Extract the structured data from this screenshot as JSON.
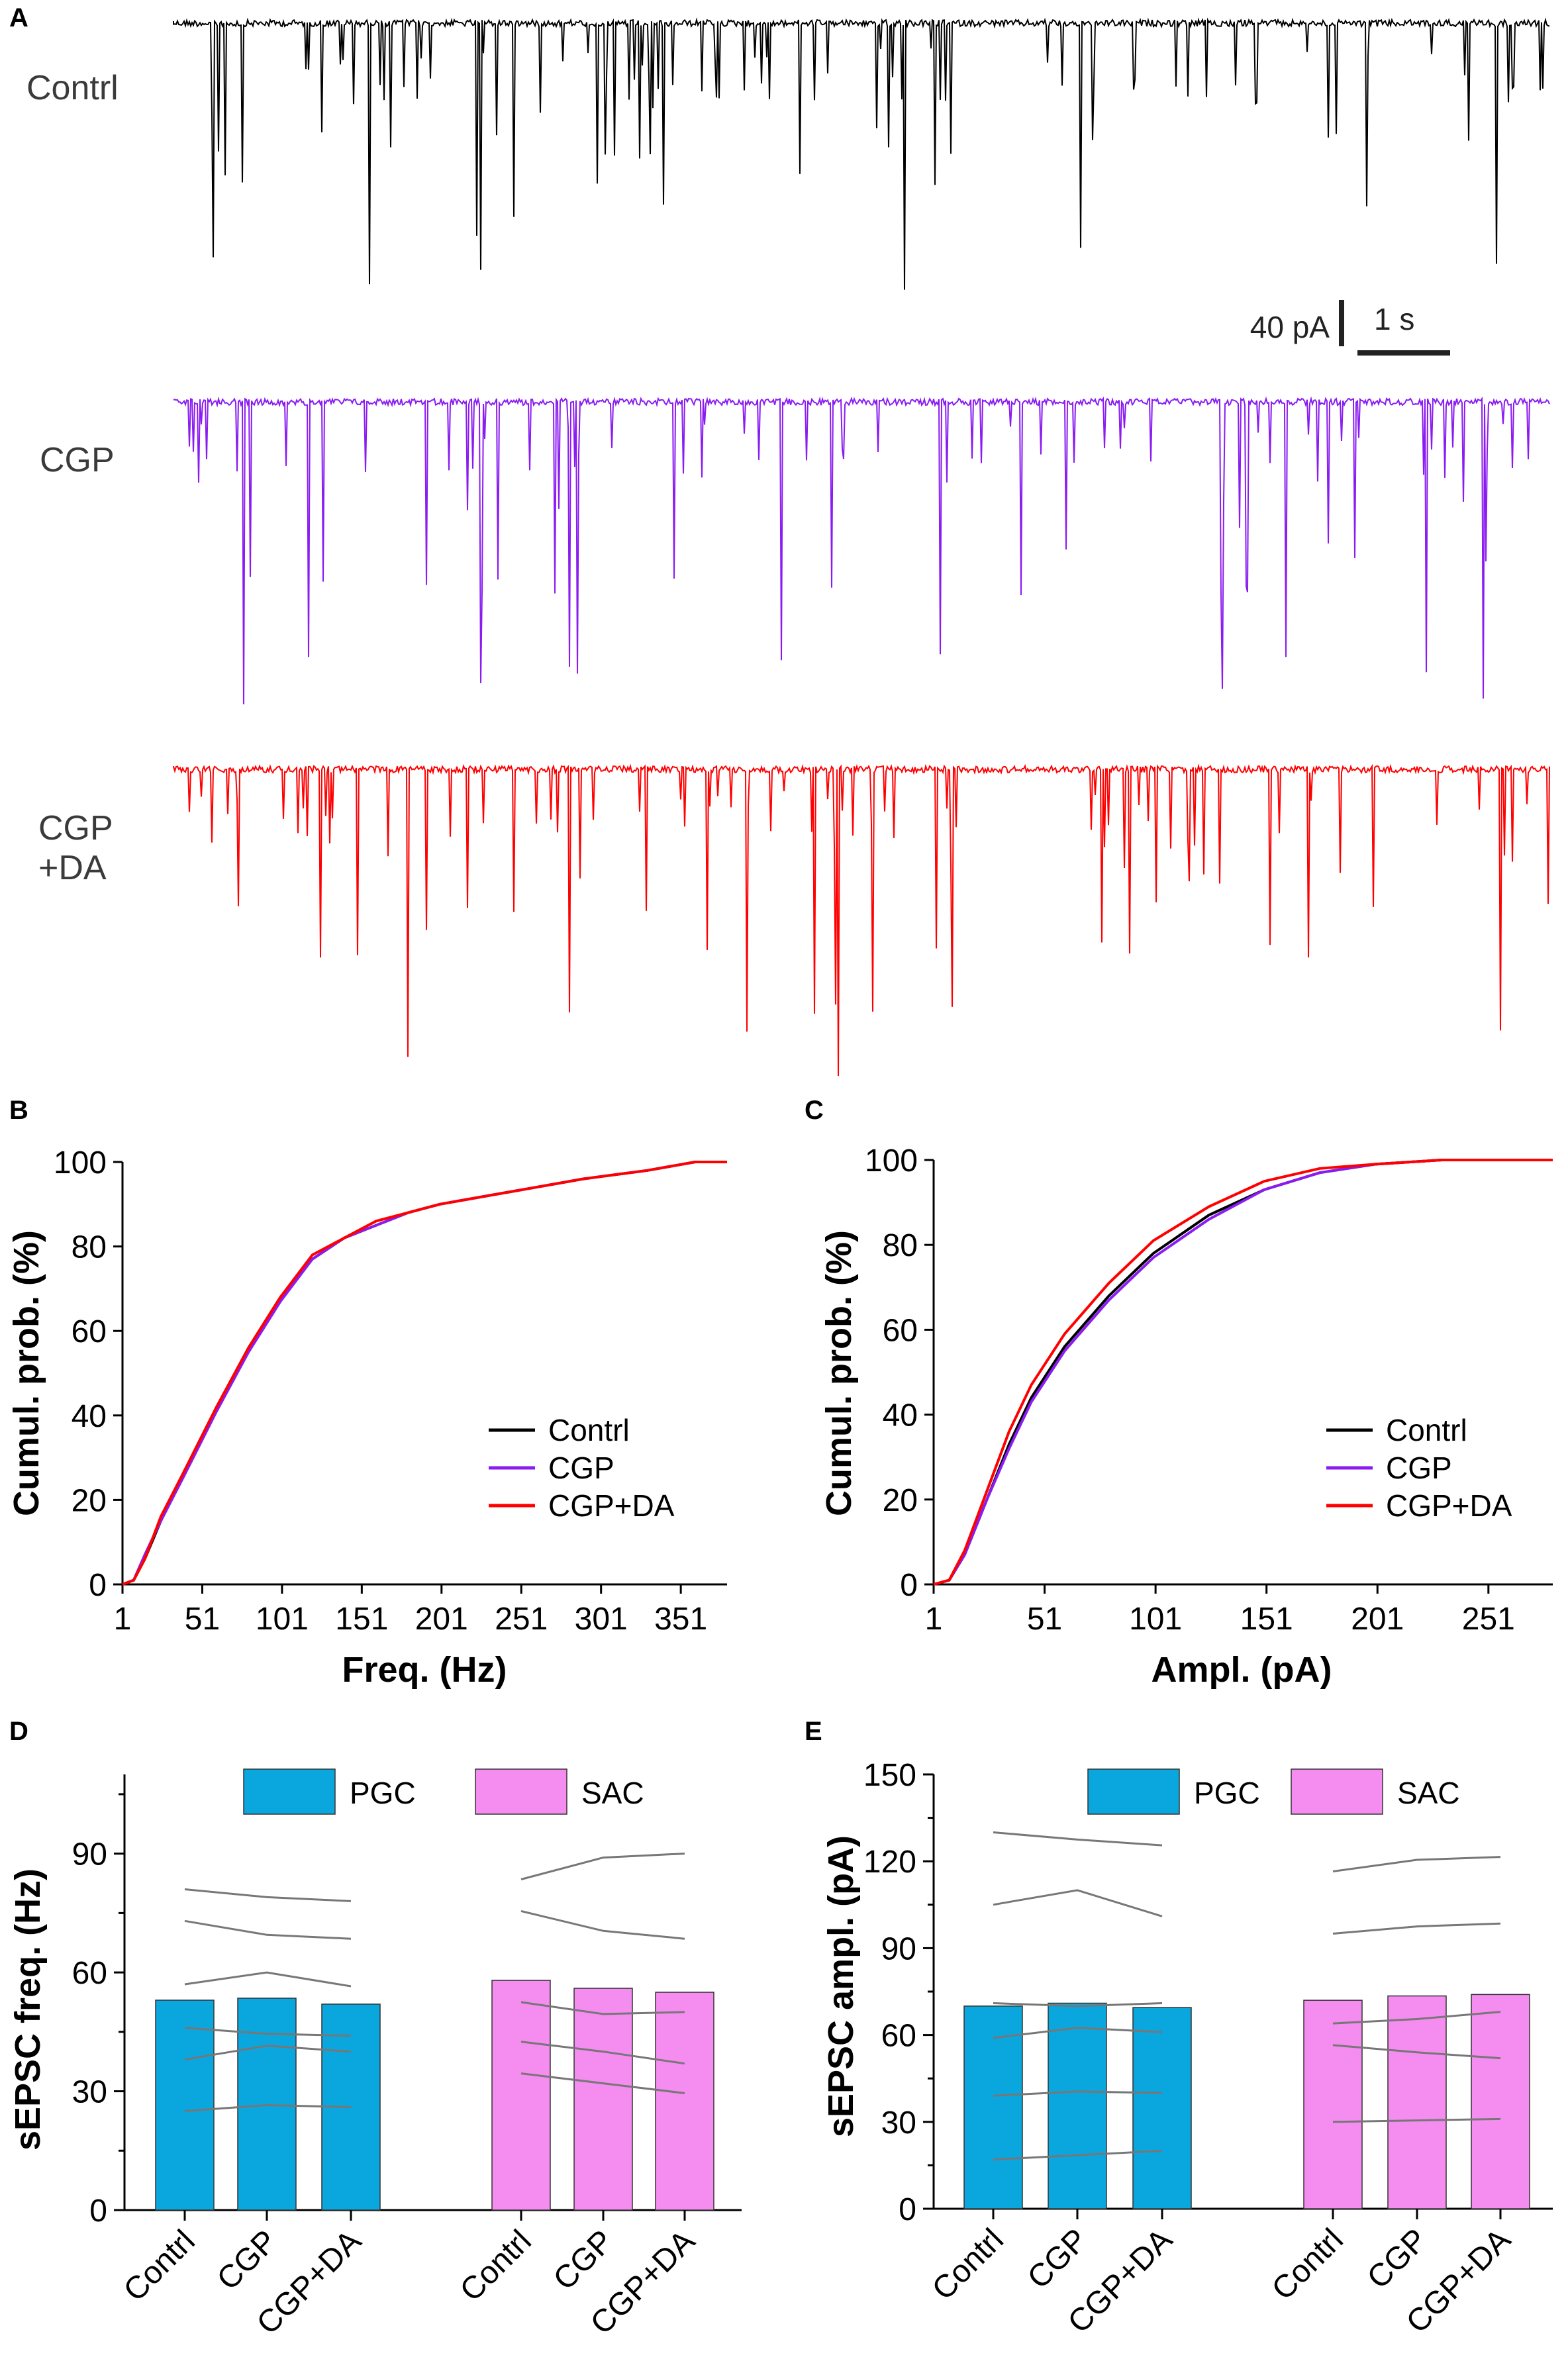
{
  "panels": {
    "A": "A",
    "B": "B",
    "C": "C",
    "D": "D",
    "E": "E"
  },
  "conditions": [
    "Contrl",
    "CGP",
    "CGP+DA"
  ],
  "colors": {
    "Contrl": "#000000",
    "CGP": "#8a1cf2",
    "CGP+DA": "#ff0000",
    "PGC": "#0aa6de",
    "SAC": "#f58cf0",
    "pair_line": "#777777"
  },
  "panel_a": {
    "traces": [
      {
        "label_line1": "Contrl",
        "label_line2": "",
        "color": "#000000"
      },
      {
        "label_line1": "CGP",
        "label_line2": "",
        "color": "#8a1cf2"
      },
      {
        "label_line1": "CGP",
        "label_line2": "+DA",
        "color": "#ff0000"
      }
    ],
    "scale_bar": {
      "amplitude_label": "40 pA",
      "time_label": "1 s"
    }
  },
  "chart_data": [
    {
      "id": "B",
      "type": "line",
      "xlabel": "Freq. (Hz)",
      "ylabel": "Cumul. prob. (%)",
      "xlim": [
        1,
        380
      ],
      "ylim": [
        0,
        100
      ],
      "xticks": [
        1,
        51,
        101,
        151,
        201,
        251,
        301,
        351
      ],
      "yticks": [
        0,
        20,
        40,
        60,
        80,
        100
      ],
      "legend": [
        "Contrl",
        "CGP",
        "CGP+DA"
      ],
      "series": [
        {
          "name": "Contrl",
          "x": [
            1,
            8,
            15,
            25,
            40,
            60,
            80,
            100,
            120,
            140,
            160,
            180,
            200,
            230,
            260,
            290,
            310,
            330,
            345,
            360,
            380
          ],
          "y": [
            0,
            1,
            6,
            15,
            27,
            42,
            56,
            68,
            77,
            82,
            85,
            88,
            90,
            92,
            94,
            96,
            97,
            98,
            99,
            100,
            100
          ]
        },
        {
          "name": "CGP",
          "x": [
            1,
            8,
            15,
            25,
            40,
            60,
            80,
            100,
            120,
            140,
            160,
            180,
            200,
            230,
            260,
            290,
            310,
            330,
            345,
            360,
            380
          ],
          "y": [
            0,
            1,
            7,
            15,
            26,
            41,
            55,
            67,
            77,
            82,
            85,
            88,
            90,
            92,
            94,
            96,
            97,
            98,
            99,
            100,
            100
          ]
        },
        {
          "name": "CGP+DA",
          "x": [
            1,
            8,
            15,
            25,
            40,
            60,
            80,
            100,
            120,
            140,
            160,
            180,
            200,
            230,
            260,
            290,
            310,
            330,
            345,
            360,
            380
          ],
          "y": [
            0,
            1,
            6,
            16,
            27,
            42,
            56,
            68,
            78,
            82,
            86,
            88,
            90,
            92,
            94,
            96,
            97,
            98,
            99,
            100,
            100
          ]
        }
      ]
    },
    {
      "id": "C",
      "type": "line",
      "xlabel": "Ampl. (pA)",
      "ylabel": "Cumul. prob. (%)",
      "xlim": [
        1,
        280
      ],
      "ylim": [
        0,
        100
      ],
      "xticks": [
        1,
        51,
        101,
        151,
        201,
        251
      ],
      "yticks": [
        0,
        20,
        40,
        60,
        80,
        100
      ],
      "legend": [
        "Contrl",
        "CGP",
        "CGP+DA"
      ],
      "series": [
        {
          "name": "Contrl",
          "x": [
            1,
            8,
            15,
            25,
            35,
            45,
            60,
            80,
            100,
            125,
            150,
            175,
            200,
            230,
            260,
            280
          ],
          "y": [
            0,
            1,
            7,
            20,
            33,
            44,
            56,
            68,
            78,
            87,
            93,
            97,
            99,
            100,
            100,
            100
          ]
        },
        {
          "name": "CGP",
          "x": [
            1,
            8,
            15,
            25,
            35,
            45,
            60,
            80,
            100,
            125,
            150,
            175,
            200,
            230,
            260,
            280
          ],
          "y": [
            0,
            1,
            7,
            20,
            32,
            43,
            55,
            67,
            77,
            86,
            93,
            97,
            99,
            100,
            100,
            100
          ]
        },
        {
          "name": "CGP+DA",
          "x": [
            1,
            8,
            15,
            25,
            35,
            45,
            60,
            80,
            100,
            125,
            150,
            175,
            200,
            230,
            260,
            280
          ],
          "y": [
            0,
            1,
            8,
            22,
            36,
            47,
            59,
            71,
            81,
            89,
            95,
            98,
            99,
            100,
            100,
            100
          ]
        }
      ]
    },
    {
      "id": "D",
      "type": "bar",
      "ylabel": "sEPSC freq. (Hz)",
      "ylim": [
        0,
        110
      ],
      "yticks": [
        0,
        30,
        60,
        90
      ],
      "groups": [
        "PGC",
        "SAC"
      ],
      "categories": [
        "Contrl",
        "CGP",
        "CGP+DA"
      ],
      "series": [
        {
          "name": "PGC",
          "values": [
            53,
            53.5,
            52
          ],
          "pairs": [
            [
              81,
              79,
              78
            ],
            [
              73,
              69.5,
              68.5
            ],
            [
              57,
              60,
              56.5
            ],
            [
              46,
              44.5,
              44
            ],
            [
              38,
              41.5,
              40
            ],
            [
              25,
              26.5,
              26
            ]
          ]
        },
        {
          "name": "SAC",
          "values": [
            58,
            56,
            55
          ],
          "pairs": [
            [
              83.5,
              89,
              90
            ],
            [
              75.5,
              70.5,
              68.5
            ],
            [
              52.5,
              49.5,
              50
            ],
            [
              42.5,
              40,
              37
            ],
            [
              34.5,
              32,
              29.5
            ]
          ]
        }
      ]
    },
    {
      "id": "E",
      "type": "bar",
      "ylabel": "sEPSC ampl. (pA)",
      "ylim": [
        0,
        150
      ],
      "yticks": [
        0,
        30,
        60,
        90,
        120,
        150
      ],
      "groups": [
        "PGC",
        "SAC"
      ],
      "categories": [
        "Contrl",
        "CGP",
        "CGP+DA"
      ],
      "series": [
        {
          "name": "PGC",
          "values": [
            70,
            71,
            69.5
          ],
          "pairs": [
            [
              130,
              127.5,
              125.5
            ],
            [
              105,
              110,
              101
            ],
            [
              71,
              70,
              71
            ],
            [
              59,
              62.5,
              61
            ],
            [
              39,
              40.5,
              40
            ],
            [
              17,
              18.5,
              20
            ]
          ]
        },
        {
          "name": "SAC",
          "values": [
            72,
            73.5,
            74
          ],
          "pairs": [
            [
              116.5,
              120.5,
              121.5
            ],
            [
              95,
              97.5,
              98.5
            ],
            [
              64,
              65.5,
              68
            ],
            [
              56.5,
              54,
              52
            ],
            [
              30,
              30.5,
              31
            ]
          ]
        }
      ]
    }
  ]
}
